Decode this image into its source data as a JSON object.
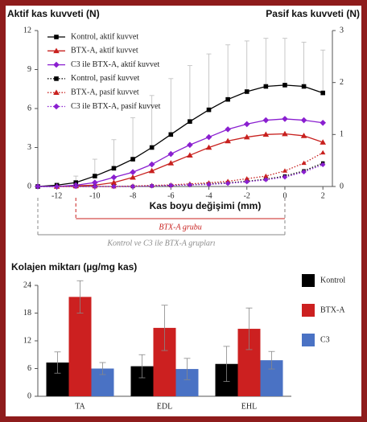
{
  "chart_data": [
    {
      "type": "line",
      "y_label": "Aktif kas kuvveti (N)",
      "y2_label": "Pasif kas kuvveti (N)",
      "x_label": "Kas boyu değişimi (mm)",
      "x": [
        -13,
        -12,
        -11,
        -10,
        -9,
        -8,
        -7,
        -6,
        -5,
        -4,
        -3,
        -2,
        -1,
        0,
        1,
        2
      ],
      "xlim": [
        -13,
        2.5
      ],
      "xticks": [
        -12,
        -10,
        -8,
        -6,
        -4,
        -2,
        0,
        2
      ],
      "ylim": [
        0,
        12
      ],
      "yticks": [
        0,
        3,
        6,
        9,
        12
      ],
      "y2lim": [
        0,
        3
      ],
      "y2ticks": [
        0,
        1,
        2,
        3
      ],
      "legend": "upper left",
      "series": [
        {
          "name": "Kontrol, aktif kuvvet",
          "color": "#000000",
          "marker": "square",
          "line_style": "solid",
          "values": [
            0,
            0.1,
            0.3,
            0.8,
            1.4,
            2.1,
            3.0,
            4.0,
            5.0,
            5.9,
            6.7,
            7.3,
            7.7,
            7.8,
            7.7,
            7.2
          ],
          "errors": [
            0,
            0,
            0.5,
            1.3,
            2.2,
            3.2,
            4.0,
            4.3,
            4.3,
            4.3,
            4.2,
            3.9,
            3.7,
            3.6,
            3.4,
            3.3
          ]
        },
        {
          "name": "BTX-A, aktif kuvvet",
          "color": "#c8201e",
          "marker": "triangle",
          "line_style": "solid",
          "values": [
            null,
            0,
            0.05,
            0.1,
            0.3,
            0.7,
            1.2,
            1.8,
            2.4,
            3.0,
            3.5,
            3.8,
            4.0,
            4.05,
            3.9,
            3.4
          ]
        },
        {
          "name": "C3 ile BTX-A, aktif kuvvet",
          "color": "#8a1fd0",
          "marker": "diamond",
          "line_style": "solid",
          "values": [
            0,
            0,
            0.1,
            0.3,
            0.7,
            1.1,
            1.7,
            2.5,
            3.2,
            3.8,
            4.4,
            4.8,
            5.1,
            5.2,
            5.1,
            4.9
          ]
        },
        {
          "name": "Kontrol, pasif kuvvet",
          "color": "#000000",
          "marker": "square",
          "line_style": "dotted",
          "axis": "y2",
          "values": [
            0,
            0,
            0,
            0,
            0,
            0,
            0.01,
            0.02,
            0.03,
            0.05,
            0.07,
            0.1,
            0.14,
            0.2,
            0.3,
            0.45
          ]
        },
        {
          "name": "BTX-A, pasif kuvvet",
          "color": "#c8201e",
          "marker": "triangle",
          "line_style": "dotted",
          "axis": "y2",
          "values": [
            null,
            0,
            0,
            0,
            0,
            0.01,
            0.02,
            0.03,
            0.05,
            0.07,
            0.1,
            0.15,
            0.2,
            0.3,
            0.45,
            0.65
          ]
        },
        {
          "name": "C3 ile BTX-A, pasif kuvvet",
          "color": "#8a1fd0",
          "marker": "diamond",
          "line_style": "dotted",
          "axis": "y2",
          "values": [
            0,
            0,
            0,
            0,
            0,
            0,
            0.01,
            0.02,
            0.03,
            0.04,
            0.06,
            0.09,
            0.13,
            0.18,
            0.28,
            0.42
          ]
        }
      ],
      "annotations": [
        {
          "text": "BTX-A grubu",
          "x": [
            -11,
            0
          ],
          "color": "#c8201e"
        },
        {
          "text": "Kontrol ve C3 ile BTX-A grupları",
          "x": [
            -13,
            0
          ],
          "color": "#8a8a8a"
        }
      ]
    },
    {
      "type": "bar",
      "title": "Kolajen miktarı (µg/mg kas)",
      "categories": [
        "TA",
        "EDL",
        "EHL"
      ],
      "ylim": [
        0,
        24
      ],
      "yticks": [
        0,
        6,
        12,
        18,
        24
      ],
      "legend": "right",
      "series": [
        {
          "name": "Kontrol",
          "color": "#000000",
          "values": [
            7.3,
            6.5,
            7.0
          ],
          "errors": [
            2.3,
            2.5,
            3.8
          ]
        },
        {
          "name": "BTX-A",
          "color": "#cc2020",
          "values": [
            21.5,
            14.8,
            14.6
          ],
          "errors": [
            3.5,
            4.9,
            4.5
          ]
        },
        {
          "name": "C3",
          "color": "#4a72c4",
          "values": [
            6.0,
            5.9,
            7.8
          ],
          "errors": [
            1.3,
            2.3,
            1.9
          ]
        }
      ]
    }
  ]
}
